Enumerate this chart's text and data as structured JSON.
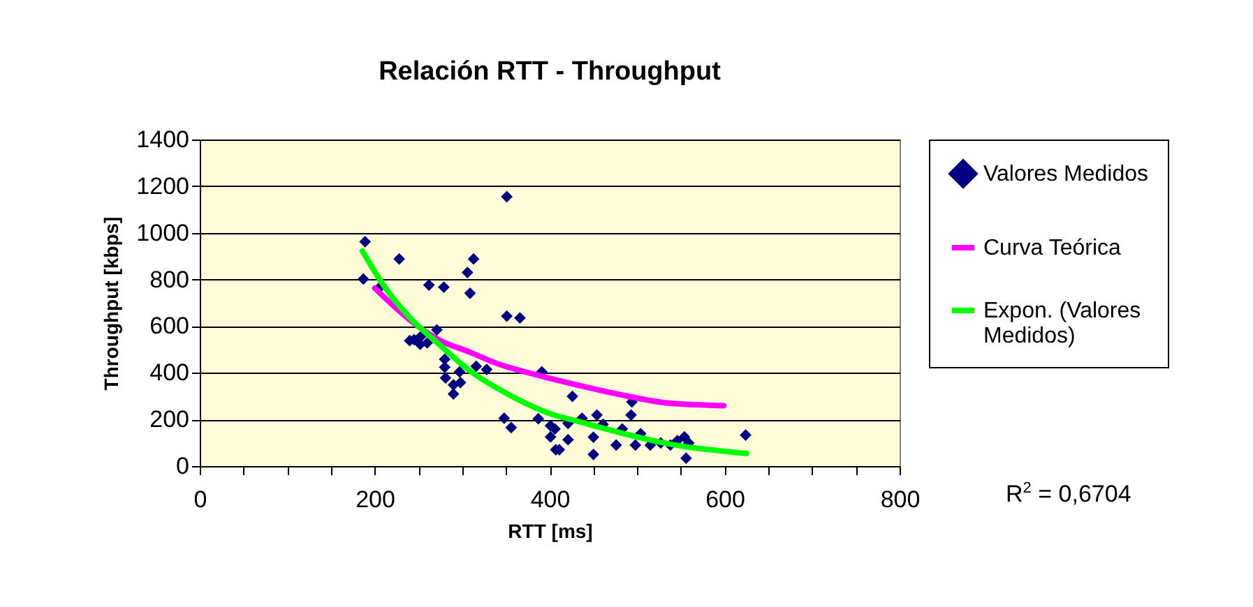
{
  "chart_data": {
    "type": "scatter",
    "title": "Relación RTT - Throughput",
    "xlabel": "RTT [ms]",
    "ylabel": "Throughput [kbps]",
    "xlim": [
      0,
      800
    ],
    "xticks": [
      0,
      {
        "value": 50,
        "label": null
      },
      {
        "value": 100,
        "label": null
      },
      {
        "value": 150,
        "label": null
      },
      200,
      {
        "value": 250,
        "label": null
      },
      {
        "value": 300,
        "label": null
      },
      {
        "value": 350,
        "label": null
      },
      400,
      {
        "value": 450,
        "label": null
      },
      {
        "value": 500,
        "label": null
      },
      {
        "value": 550,
        "label": null
      },
      600,
      {
        "value": 650,
        "label": null
      },
      {
        "value": 700,
        "label": null
      },
      {
        "value": 750,
        "label": null
      },
      800
    ],
    "ylim": [
      0,
      1400
    ],
    "yticks": [
      0,
      200,
      400,
      600,
      800,
      1000,
      1200,
      1400
    ],
    "grid": "y",
    "legend": "right",
    "series": [
      {
        "name": "Valores Medidos",
        "marker": "diamond",
        "color": "#000080",
        "x": [
          189,
          187,
          207,
          228,
          262,
          279,
          306,
          313,
          309,
          351,
          351,
          366,
          271,
          240,
          245,
          252,
          260,
          253,
          280,
          280,
          281,
          297,
          298,
          290,
          290,
          316,
          328,
          391,
          348,
          356,
          387,
          401,
          406,
          401,
          411,
          407,
          421,
          426,
          421,
          437,
          450,
          450,
          454,
          461,
          476,
          483,
          493,
          494,
          498,
          504,
          515,
          527,
          538,
          546,
          554,
          556,
          559,
          624
        ],
        "values": [
          962,
          802,
          771,
          888,
          776,
          767,
          830,
          888,
          741,
          1155,
          643,
          635,
          584,
          538,
          542,
          522,
          528,
          557,
          458,
          424,
          378,
          404,
          358,
          348,
          309,
          428,
          414,
          404,
          205,
          165,
          203,
          173,
          159,
          125,
          70,
          70,
          113,
          299,
          183,
          205,
          124,
          50,
          219,
          179,
          90,
          159,
          219,
          275,
          90,
          139,
          90,
          99,
          90,
          109,
          125,
          34,
          99,
          133
        ]
      },
      {
        "name": "Curva Teórica",
        "type": "line",
        "color": "#ff00ff",
        "x": [
          200,
          240,
          272,
          309,
          341,
          383,
          431,
          485,
          538,
          599
        ],
        "values": [
          763,
          627,
          544,
          488,
          438,
          393,
          348,
          303,
          269,
          259
        ]
      },
      {
        "name": "Expon. (Valores Medidos)",
        "type": "line",
        "color": "#00ff00",
        "x": [
          186,
          208,
          240,
          272,
          309,
          352,
          405,
          431,
          485,
          538,
          625
        ],
        "values": [
          922,
          787,
          637,
          527,
          408,
          309,
          219,
          193,
          139,
          94,
          54
        ]
      }
    ],
    "annotations": [
      "R$^{2}$ = 0,6704"
    ]
  }
}
